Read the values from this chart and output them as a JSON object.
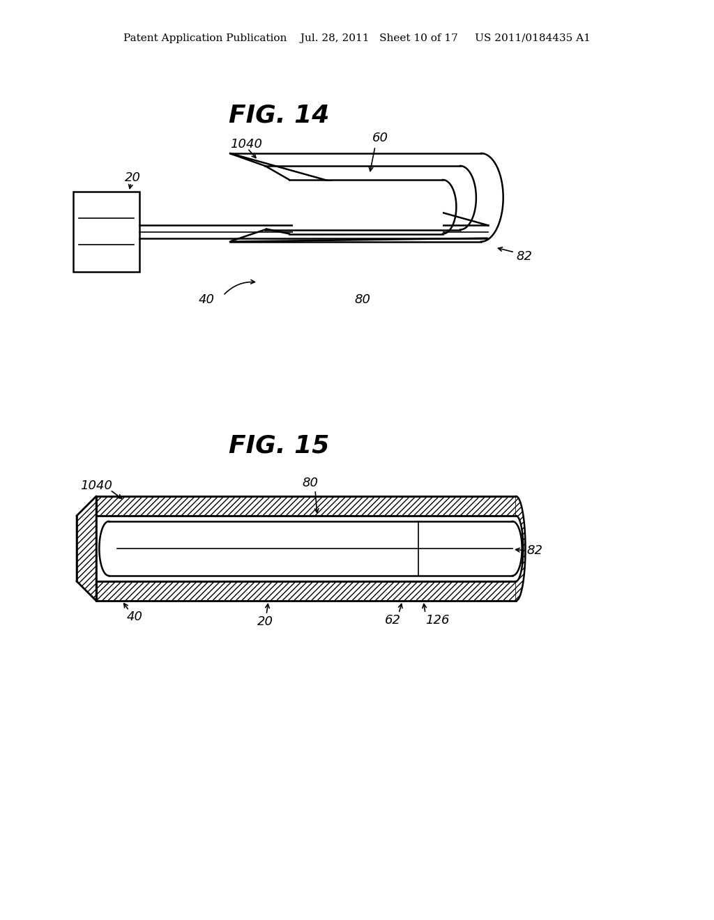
{
  "bg_color": "#ffffff",
  "line_color": "#000000",
  "header_text": "Patent Application Publication    Jul. 28, 2011   Sheet 10 of 17     US 2011/0184435 A1",
  "fig14_title": "FIG. 14",
  "fig15_title": "FIG. 15"
}
